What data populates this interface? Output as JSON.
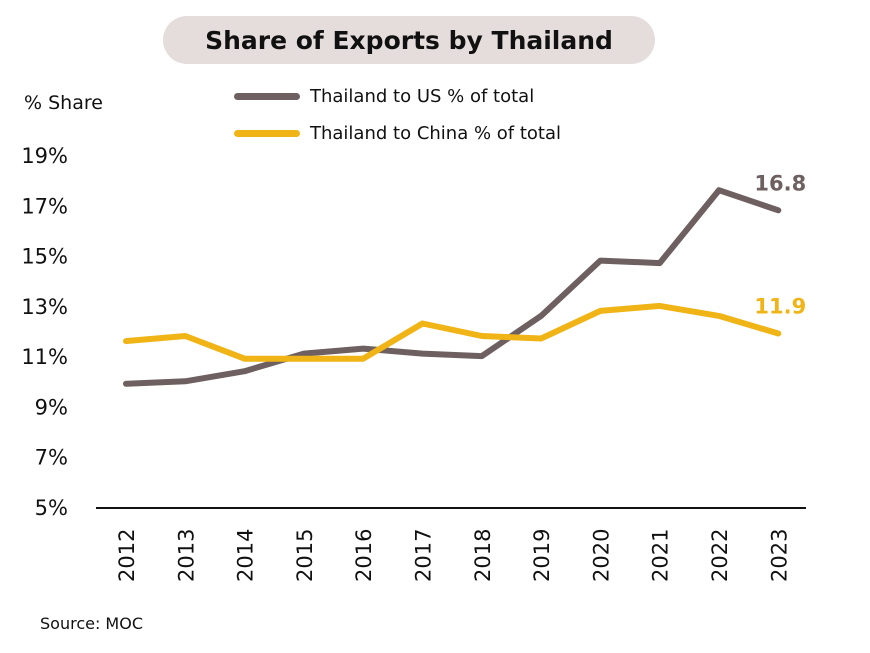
{
  "header": {
    "title": "Share of Exports by Thailand"
  },
  "footer": {
    "source": "Source: MOC"
  },
  "colors": {
    "us": "#6e6060",
    "china": "#f0b416",
    "axis": "#111111",
    "title_bg": "#e5dcdc"
  },
  "chart_data": {
    "type": "line",
    "title": "Share of Exports by Thailand",
    "ylabel": "% Share",
    "xlabel": "",
    "ylim": [
      5,
      19
    ],
    "yticks": [
      "5%",
      "7%",
      "9%",
      "11%",
      "13%",
      "15%",
      "17%",
      "19%"
    ],
    "ytick_values": [
      5,
      7,
      9,
      11,
      13,
      15,
      17,
      19
    ],
    "x": [
      "2012",
      "2013",
      "2014",
      "2015",
      "2016",
      "2017",
      "2018",
      "2019",
      "2020",
      "2021",
      "2022",
      "2023"
    ],
    "grid": false,
    "legend": "top-center",
    "series": [
      {
        "name": "Thailand to US % of total",
        "color": "#6e6060",
        "values": [
          9.9,
          10.0,
          10.4,
          11.1,
          11.3,
          11.1,
          11.0,
          12.6,
          14.8,
          14.7,
          17.6,
          16.8
        ],
        "end_label": "16.8"
      },
      {
        "name": "Thailand to China % of total",
        "color": "#f0b416",
        "values": [
          11.6,
          11.8,
          10.9,
          10.9,
          10.9,
          12.3,
          11.8,
          11.7,
          12.8,
          13.0,
          12.6,
          11.9
        ],
        "end_label": "11.9"
      }
    ],
    "source": "Source: MOC"
  }
}
